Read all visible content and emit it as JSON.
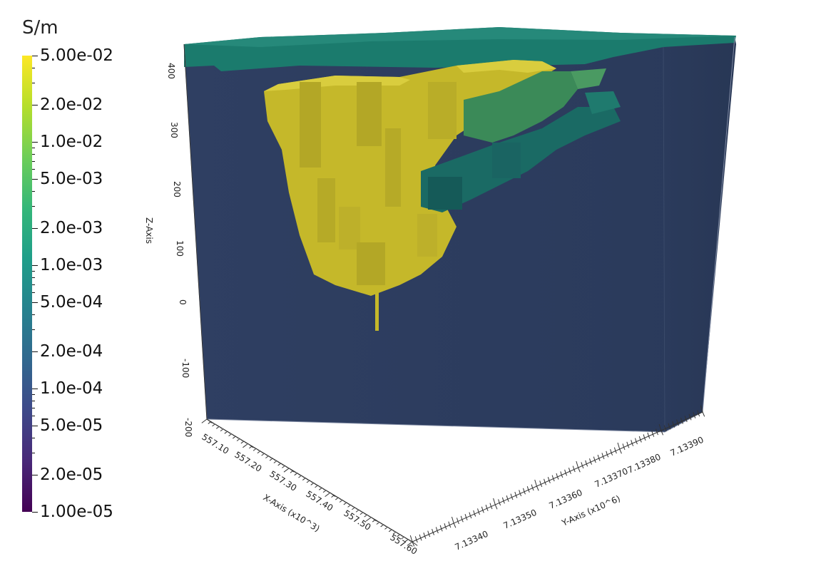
{
  "colorbar": {
    "title": "S/m",
    "labels": [
      "5.00e-02",
      "2.0e-02",
      "1.0e-02",
      "5.0e-03",
      "2.0e-03",
      "1.0e-03",
      "5.0e-04",
      "2.0e-04",
      "1.0e-04",
      "5.0e-05",
      "2.0e-05",
      "1.00e-05"
    ],
    "colors": [
      "#440154",
      "#482878",
      "#3e4989",
      "#31688e",
      "#26828e",
      "#1f9e89",
      "#35b779",
      "#6ece58",
      "#b5de2b",
      "#fde725"
    ]
  },
  "axes": {
    "z": {
      "title": "Z-Axis",
      "ticks": [
        "400",
        "300",
        "200",
        "100",
        "0",
        "-100",
        "-200"
      ]
    },
    "x": {
      "title": "X-Axis (x10^3)",
      "ticks": [
        "557.10",
        "557.20",
        "557.30",
        "557.40",
        "557.50",
        "557.60"
      ]
    },
    "y": {
      "title": "Y-Axis (x10^6)",
      "ticks": [
        "7.13340",
        "7.13350",
        "7.13360",
        "7.13370",
        "7.13380",
        "7.13390"
      ]
    }
  },
  "model": {
    "background_color": "#2c3c5e",
    "surface_layer_color": "#1b7b6d",
    "high_conductivity_color": "#c5b82a",
    "mid_conductivity_color": "#3b8a58",
    "low_mid_color": "#1a6a64"
  }
}
